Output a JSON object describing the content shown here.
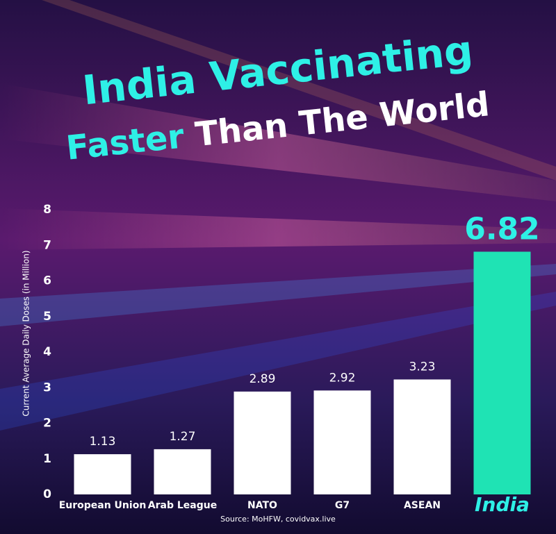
{
  "chart_data": {
    "type": "bar",
    "title": [
      "India Vaccinating",
      "Faster",
      "Than The World"
    ],
    "y_label": "Current Average Daily Doses (in Million)",
    "source": "Source: MoHFW, covidvax.live",
    "categories": [
      "European Union",
      "Arab League",
      "NATO",
      "G7",
      "ASEAN",
      "India"
    ],
    "values": [
      1.13,
      1.27,
      2.89,
      2.92,
      3.23,
      6.82
    ],
    "colors": [
      "#ffffff",
      "#ffffff",
      "#ffffff",
      "#ffffff",
      "#ffffff",
      "#1fe3b4"
    ],
    "ylim": [
      0,
      8
    ],
    "yticks": [
      0,
      1,
      2,
      3,
      4,
      5,
      6,
      7,
      8
    ],
    "grid": false
  }
}
